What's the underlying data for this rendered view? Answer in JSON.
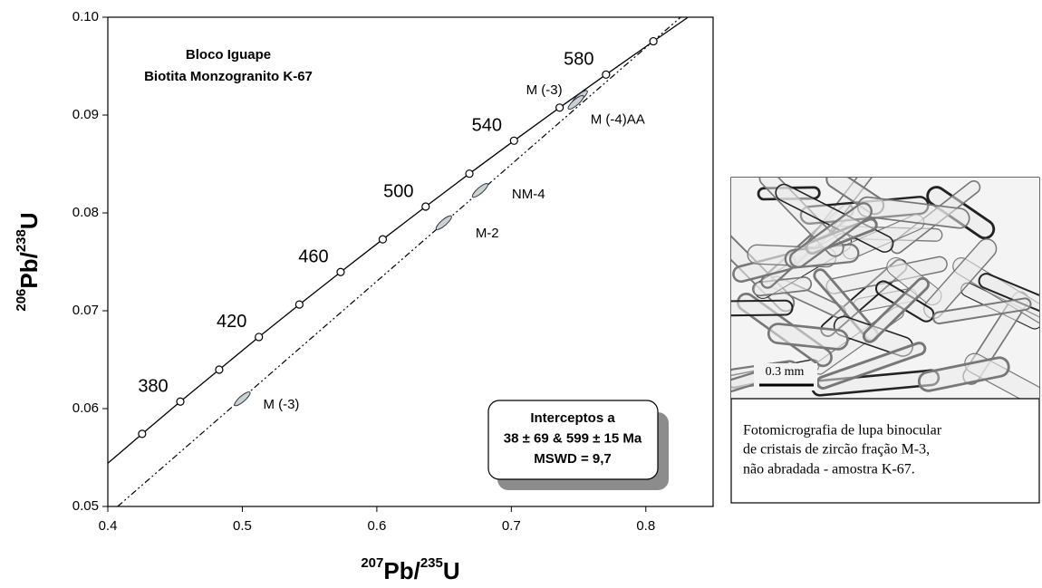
{
  "chart_data": {
    "type": "concordia",
    "title_lines": [
      "Bloco Iguape",
      "Biotita Monzogranito K-67"
    ],
    "xlabel": [
      "207",
      "Pb/",
      "235",
      "U"
    ],
    "ylabel": [
      "206",
      "Pb/",
      "238",
      "U"
    ],
    "xlim": [
      0.4,
      0.85
    ],
    "ylim": [
      0.05,
      0.1
    ],
    "xticks": [
      0.4,
      0.5,
      0.6,
      0.7,
      0.8
    ],
    "yticks": [
      {
        "value": 0.05,
        "label": "0.05"
      },
      0.06,
      0.07,
      0.08,
      0.09,
      {
        "value": 0.1,
        "label": "0.10"
      }
    ],
    "concordia_curve": {
      "x": [
        0.4,
        0.4255,
        0.4539,
        0.4828,
        0.5123,
        0.5424,
        0.5731,
        0.6044,
        0.6363,
        0.6688,
        0.702,
        0.7359,
        0.7704,
        0.8056,
        0.8314
      ],
      "y": [
        0.05442,
        0.05742,
        0.06072,
        0.06398,
        0.06732,
        0.07064,
        0.07396,
        0.0773,
        0.08065,
        0.08401,
        0.08738,
        0.09076,
        0.09414,
        0.09754,
        0.1
      ]
    },
    "concordia_points": {
      "x": [
        0.4255,
        0.4539,
        0.4828,
        0.5123,
        0.5424,
        0.5731,
        0.6044,
        0.6363,
        0.6688,
        0.702,
        0.7359,
        0.7704,
        0.8056
      ],
      "y": [
        0.05742,
        0.06072,
        0.06398,
        0.06732,
        0.07064,
        0.07396,
        0.0773,
        0.08065,
        0.08401,
        0.08738,
        0.09076,
        0.09414,
        0.09754
      ],
      "point_labels": [
        null,
        "380",
        null,
        "420",
        null,
        "460",
        null,
        "500",
        null,
        "540",
        null,
        "580",
        null
      ]
    },
    "discordia": {
      "x": [
        0.4073,
        0.8259
      ],
      "y": [
        0.05,
        0.1
      ]
    },
    "analyses": {
      "x": [
        0.5,
        0.6498,
        0.6768,
        0.7508,
        0.748
      ],
      "y": [
        0.061,
        0.079,
        0.0823,
        0.0918,
        0.0913
      ],
      "labels": [
        "M (-3)",
        "M-2",
        "NM-4",
        "M (-4)AA",
        "M (-3)"
      ]
    },
    "result_lines": [
      "Interceptos a",
      "38 ± 69 & 599 ± 15 Ma",
      "MSWD = 9,7"
    ]
  },
  "photo_panel": {
    "scale_label": "0.3 mm",
    "caption_lines": [
      "Fotomicrografia de lupa binocular",
      "de cristais de zircão fração M-3,",
      "não abradada - amostra K-67."
    ]
  }
}
